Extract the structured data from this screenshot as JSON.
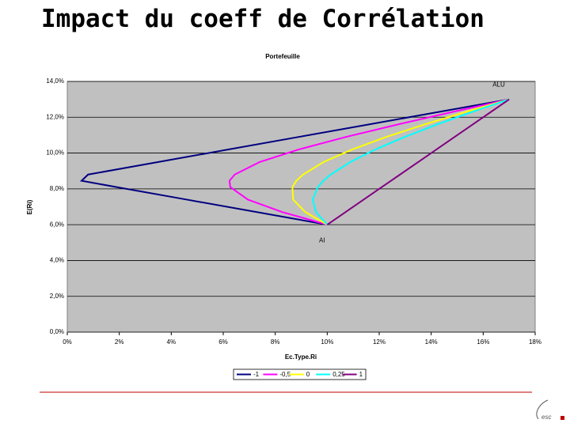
{
  "slide_title": "Impact du coeff de Corrélation",
  "chart_data": {
    "type": "line",
    "title": "Portefeuille",
    "x_label": "Ec.Type.Ri",
    "y_label": "E(Ri)",
    "xlim": [
      0,
      18
    ],
    "ylim": [
      0,
      14
    ],
    "xticks": [
      {
        "value": 0,
        "label": "0%"
      },
      {
        "value": 2,
        "label": "2%"
      },
      {
        "value": 4,
        "label": "4%"
      },
      {
        "value": 6,
        "label": "6%"
      },
      {
        "value": 8,
        "label": "8%"
      },
      {
        "value": 10,
        "label": "10%"
      },
      {
        "value": 12,
        "label": "12%"
      },
      {
        "value": 14,
        "label": "14%"
      },
      {
        "value": 16,
        "label": "16%"
      },
      {
        "value": 18,
        "label": "18%"
      }
    ],
    "yticks": [
      {
        "value": 0,
        "label": "0,0%"
      },
      {
        "value": 2,
        "label": "2,0%"
      },
      {
        "value": 4,
        "label": "4,0%"
      },
      {
        "value": 6,
        "label": "6,0%"
      },
      {
        "value": 8,
        "label": "8,0%"
      },
      {
        "value": 10,
        "label": "10,0%"
      },
      {
        "value": 12,
        "label": "12,0%"
      },
      {
        "value": 14,
        "label": "14,0%"
      }
    ],
    "grid": true,
    "series": [
      {
        "name": "-1",
        "color": "#000080",
        "x": [
          10,
          7.3,
          4.6,
          1.9,
          0.55,
          0.8,
          3.5,
          6.2,
          8.9,
          11.6,
          14.3,
          17
        ],
        "values": [
          6,
          6.7,
          7.4,
          8.1,
          8.45,
          8.8,
          9.5,
          10.2,
          10.9,
          11.6,
          12.3,
          13
        ]
      },
      {
        "name": "-0,5",
        "color": "#ff00ff",
        "x": [
          10,
          8.28,
          6.95,
          6.27,
          6.24,
          6.44,
          7.4,
          8.9,
          10.72,
          12.72,
          14.83,
          17
        ],
        "values": [
          6,
          6.7,
          7.4,
          8.1,
          8.45,
          8.8,
          9.5,
          10.2,
          10.9,
          11.6,
          12.3,
          13
        ]
      },
      {
        "name": "0",
        "color": "#ffff00",
        "x": [
          10,
          9.16,
          8.69,
          8.66,
          8.81,
          9.07,
          9.86,
          10.96,
          12.27,
          13.75,
          15.33,
          17
        ],
        "values": [
          6,
          6.7,
          7.4,
          8.1,
          8.45,
          8.8,
          9.5,
          10.2,
          10.9,
          11.6,
          12.3,
          13
        ]
      },
      {
        "name": "0,25",
        "color": "#00ffff",
        "x": [
          10,
          9.57,
          9.44,
          9.64,
          9.85,
          10.13,
          10.89,
          11.85,
          12.98,
          14.23,
          15.58,
          17
        ],
        "values": [
          6,
          6.7,
          7.4,
          8.1,
          8.45,
          8.8,
          9.5,
          10.2,
          10.9,
          11.6,
          12.3,
          13
        ]
      },
      {
        "name": "1",
        "color": "#800080",
        "x": [
          10,
          10.7,
          11.4,
          12.1,
          12.45,
          12.8,
          13.5,
          14.2,
          14.9,
          15.6,
          16.3,
          17
        ],
        "values": [
          6,
          6.7,
          7.4,
          8.1,
          8.45,
          8.8,
          9.5,
          10.2,
          10.9,
          11.6,
          12.3,
          13
        ]
      }
    ],
    "annotations": [
      {
        "text": "ALU",
        "x": 16.6,
        "y": 13.8
      },
      {
        "text": "AI",
        "x": 9.8,
        "y": 5.1
      }
    ]
  }
}
